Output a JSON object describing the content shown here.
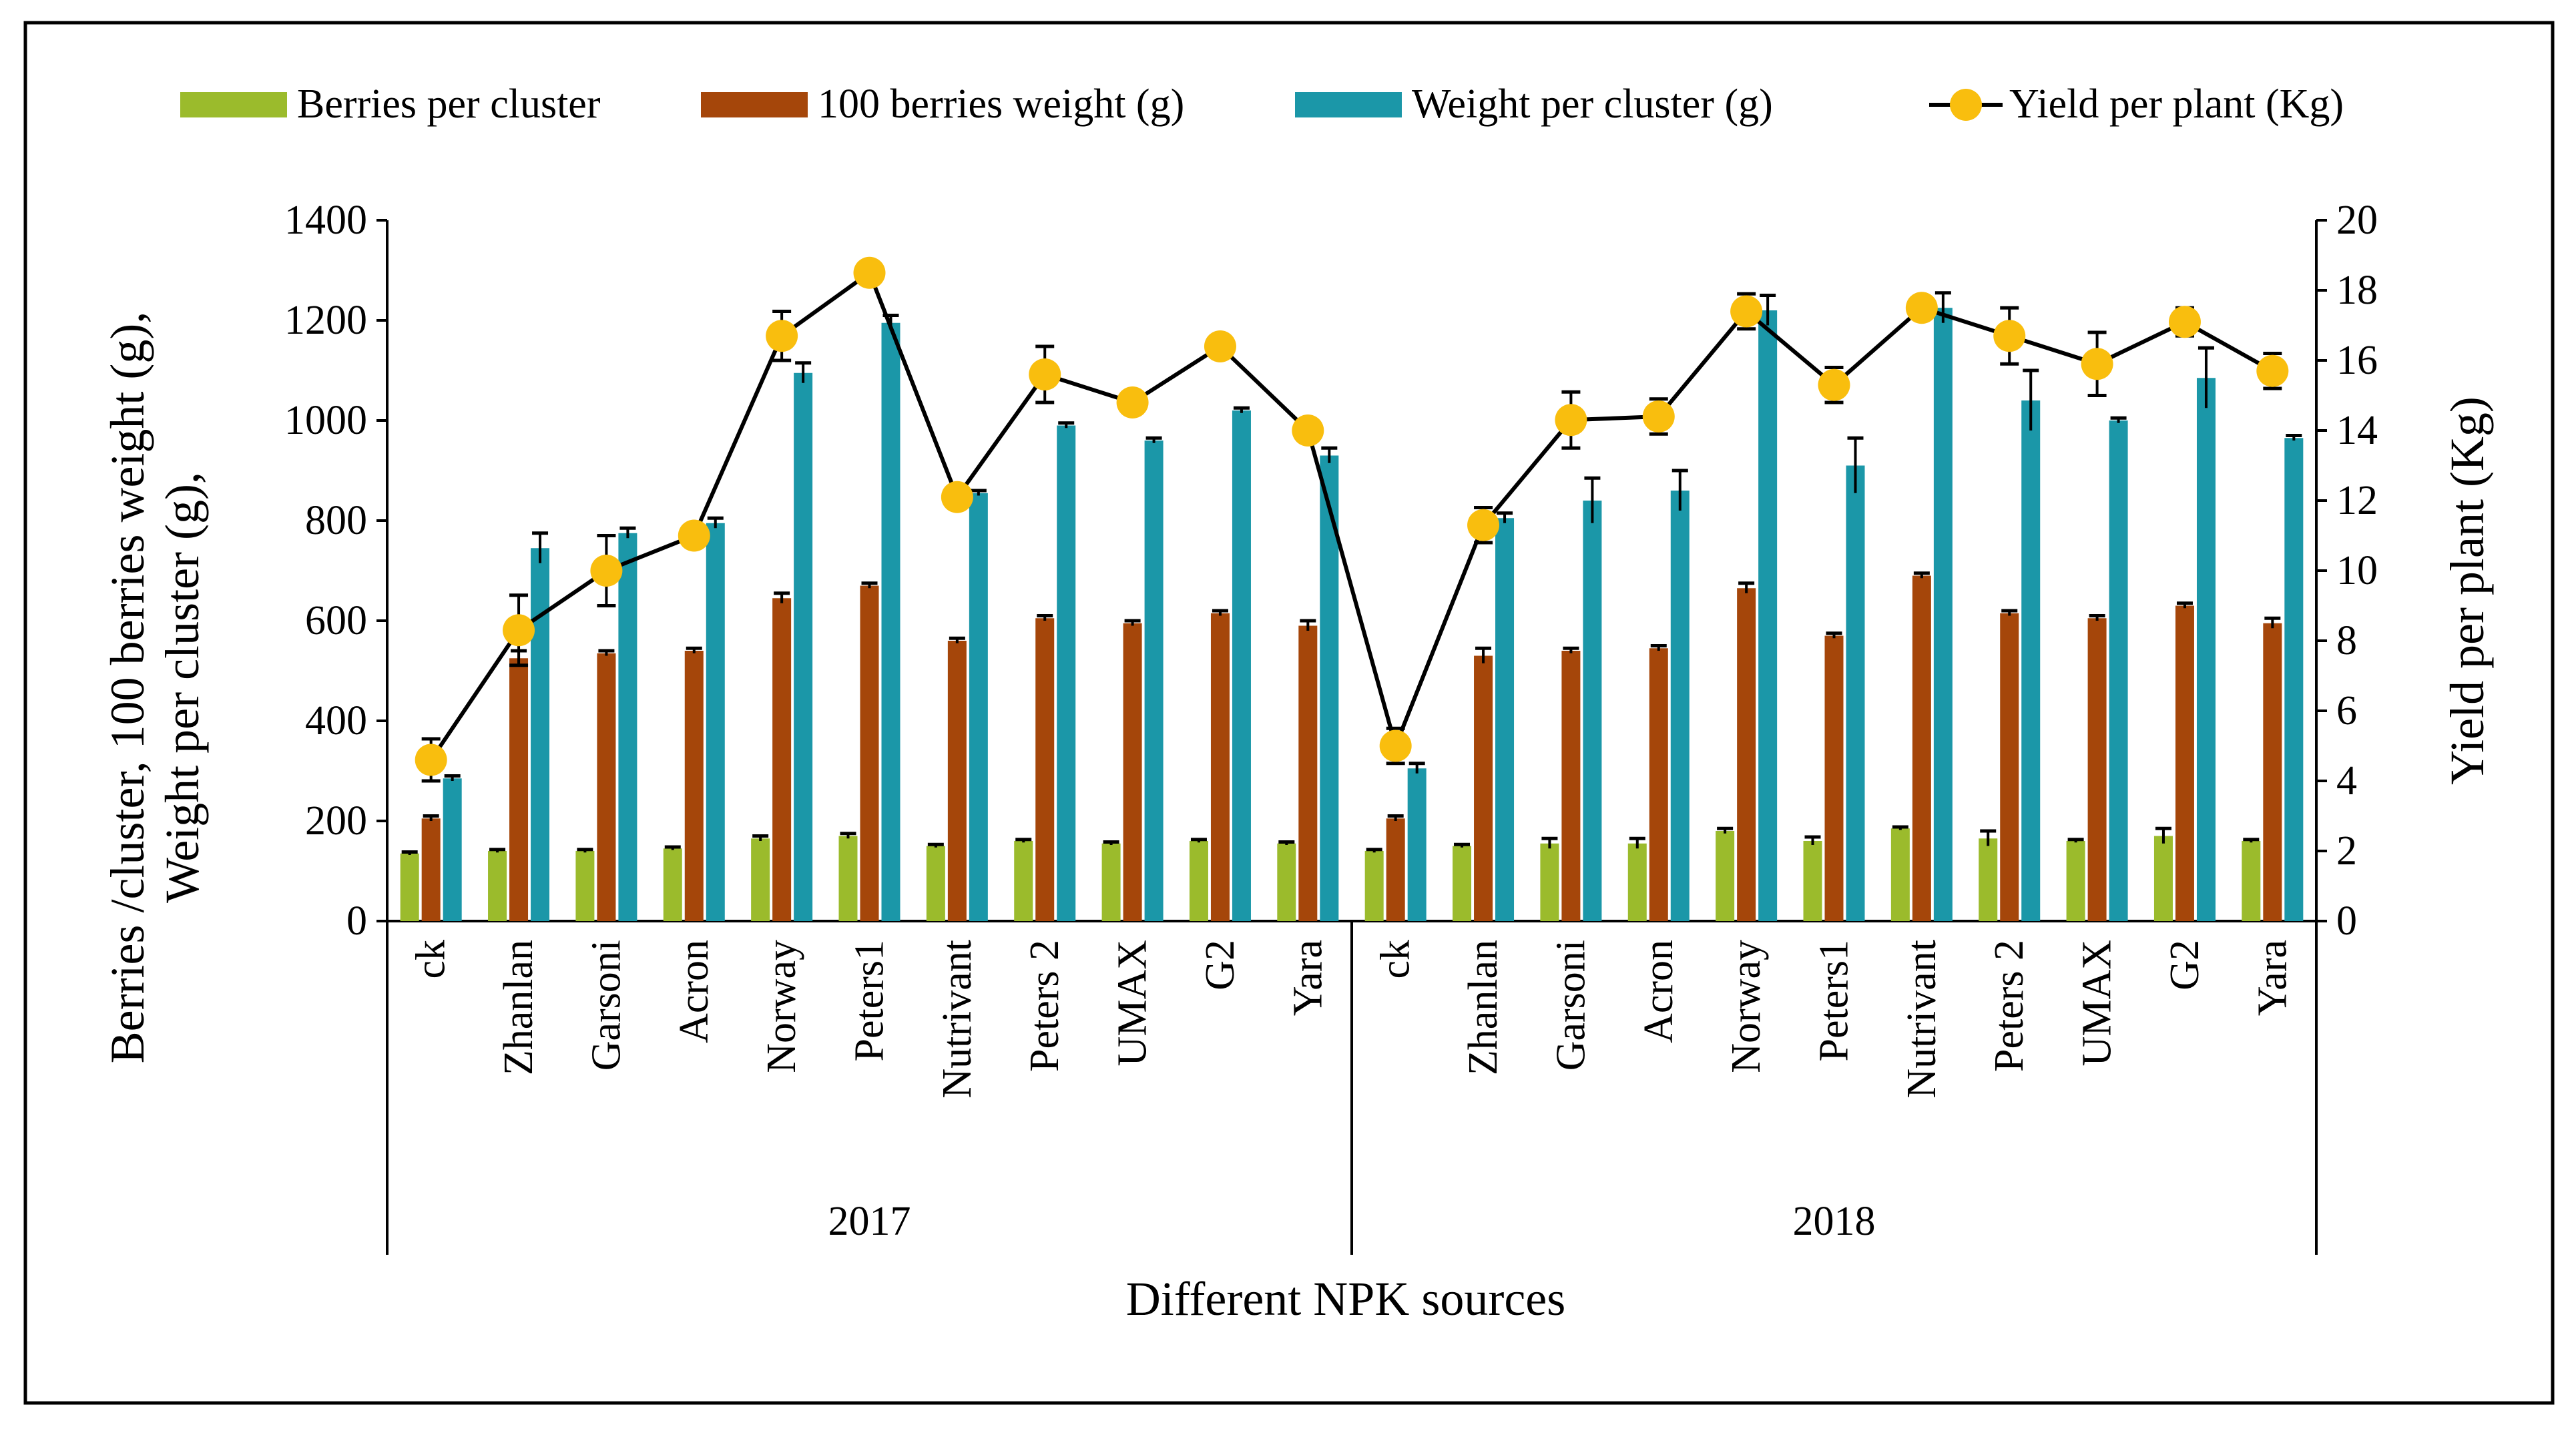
{
  "chart_data": {
    "type": "bar",
    "xlabel": "Different NPK sources",
    "ylabel_lines": [
      "Berries /cluster, 100 berries weight (g),",
      "Weight per cluster (g),"
    ],
    "y2label": "Yield per plant (Kg)",
    "ylim": [
      0,
      1400
    ],
    "yticks": [
      0,
      200,
      400,
      600,
      800,
      1000,
      1200,
      1400
    ],
    "y2lim": [
      0,
      20
    ],
    "y2ticks": [
      0,
      2,
      4,
      6,
      8,
      10,
      12,
      14,
      16,
      18,
      20
    ],
    "groups": [
      {
        "label": "2017",
        "categories": [
          "ck",
          "Zhanlan",
          "Garsoni",
          "Acron",
          "Norway",
          "Peters1",
          "Nutrivant",
          "Peters 2",
          "UMAX",
          "G2",
          "Yara"
        ]
      },
      {
        "label": "2018",
        "categories": [
          "ck",
          "Zhanlan",
          "Garsoni",
          "Acron",
          "Norway",
          "Peters1",
          "Nutrivant",
          "Peters 2",
          "UMAX",
          "G2",
          "Yara"
        ]
      }
    ],
    "series": [
      {
        "name": "Berries per cluster",
        "axis": "left",
        "kind": "bar",
        "color": "#9BBB2C",
        "values": [
          135,
          140,
          140,
          145,
          165,
          170,
          150,
          160,
          155,
          160,
          155,
          140,
          150,
          155,
          155,
          180,
          160,
          185,
          165,
          160,
          170,
          160
        ],
        "errors": [
          3,
          3,
          3,
          3,
          5,
          5,
          3,
          3,
          3,
          3,
          3,
          3,
          3,
          10,
          10,
          5,
          8,
          3,
          15,
          3,
          15,
          3
        ]
      },
      {
        "name": "100 berries weight (g)",
        "axis": "left",
        "kind": "bar",
        "color": "#A5460A",
        "values": [
          205,
          525,
          535,
          540,
          645,
          670,
          560,
          605,
          595,
          615,
          590,
          205,
          530,
          540,
          545,
          665,
          570,
          690,
          615,
          605,
          630,
          595
        ],
        "errors": [
          5,
          15,
          5,
          5,
          10,
          5,
          5,
          5,
          5,
          5,
          10,
          5,
          15,
          5,
          5,
          10,
          5,
          5,
          5,
          5,
          5,
          10
        ]
      },
      {
        "name": "Weight per cluster (g)",
        "axis": "left",
        "kind": "bar",
        "color": "#1B97A8",
        "values": [
          285,
          745,
          775,
          795,
          1095,
          1195,
          855,
          990,
          960,
          1020,
          930,
          305,
          805,
          840,
          860,
          1220,
          910,
          1225,
          1040,
          1000,
          1085,
          965
        ],
        "errors": [
          5,
          30,
          10,
          10,
          20,
          15,
          5,
          5,
          5,
          5,
          15,
          10,
          10,
          45,
          40,
          30,
          55,
          30,
          60,
          5,
          60,
          5
        ]
      },
      {
        "name": "Yield per plant (Kg)",
        "axis": "right",
        "kind": "line",
        "color": "#000000",
        "marker_color": "#F9BE0E",
        "values": [
          4.6,
          8.3,
          10.0,
          11.0,
          16.7,
          18.5,
          12.1,
          15.6,
          14.8,
          16.4,
          14.0,
          5.0,
          11.3,
          14.3,
          14.4,
          17.4,
          15.3,
          17.5,
          16.7,
          15.9,
          17.1,
          15.7
        ],
        "errors": [
          0.6,
          1.0,
          1.0,
          0.3,
          0.7,
          0.2,
          0.2,
          0.8,
          0.2,
          0.2,
          0.3,
          0.5,
          0.5,
          0.8,
          0.5,
          0.5,
          0.5,
          0.3,
          0.8,
          0.9,
          0.4,
          0.5
        ]
      }
    ]
  }
}
